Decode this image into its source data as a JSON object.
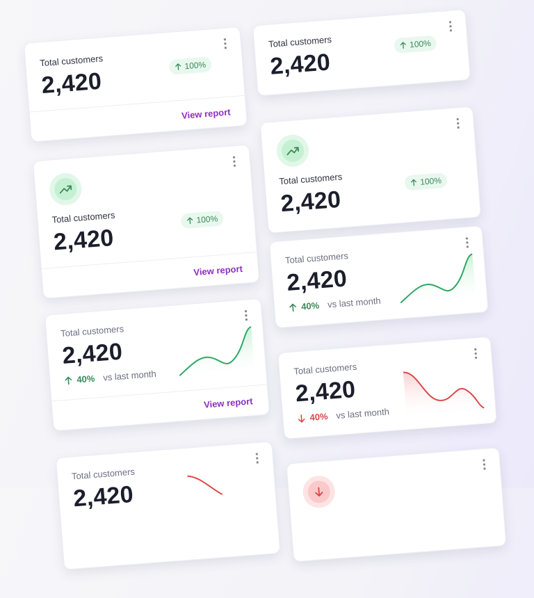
{
  "cards": [
    {
      "label": "Total customers",
      "value": "2,420",
      "badge": "100%",
      "link": "View report"
    },
    {
      "label": "Total customers",
      "value": "2,420",
      "badge": "100%",
      "link": "View report"
    },
    {
      "label": "Total customers",
      "value": "2,420",
      "trend": "40%",
      "compare": "vs last month",
      "link": "View report"
    },
    {
      "label": "Total customers",
      "value": "2,420"
    },
    {
      "label": "Total customers",
      "value": "2,420",
      "badge": "100%"
    },
    {
      "label": "Total customers",
      "value": "2,420",
      "badge": "100%"
    },
    {
      "label": "Total customers",
      "value": "2,420",
      "trend": "40%",
      "compare": "vs last month"
    },
    {
      "label": "Total customers",
      "value": "2,420",
      "trend": "40%",
      "compare": "vs last month"
    }
  ]
}
